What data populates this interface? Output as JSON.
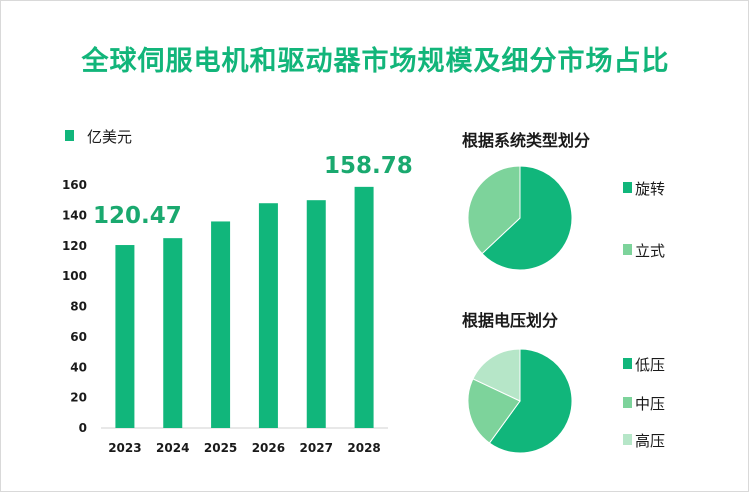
{
  "title": "全球伺服电机和驱动器市场规模及细分市场占比",
  "colors": {
    "title": "#12b57a",
    "bar": "#11b67b",
    "pie_dark": "#11b67b",
    "pie_mid": "#7dd39b",
    "pie_light": "#b6e6c8"
  },
  "chart_data": [
    {
      "type": "bar",
      "legend": "亿美元",
      "categories": [
        "2023",
        "2024",
        "2025",
        "2026",
        "2027",
        "2028"
      ],
      "values": [
        120.47,
        125,
        136,
        148,
        150,
        158.78
      ],
      "annotations": [
        {
          "category": "2023",
          "text": "120.47"
        },
        {
          "category": "2028",
          "text": "158.78"
        }
      ],
      "yticks": [
        "0",
        "20",
        "40",
        "60",
        "80",
        "100",
        "120",
        "140",
        "160"
      ],
      "ylim": [
        0,
        160
      ],
      "grid": false
    },
    {
      "type": "pie",
      "title": "根据系统类型划分",
      "labels": [
        "旋转",
        "立式"
      ],
      "values": [
        63,
        37
      ]
    },
    {
      "type": "pie",
      "title": "根据电压划分",
      "labels": [
        "低压",
        "中压",
        "高压"
      ],
      "values": [
        60,
        22,
        18
      ]
    }
  ]
}
